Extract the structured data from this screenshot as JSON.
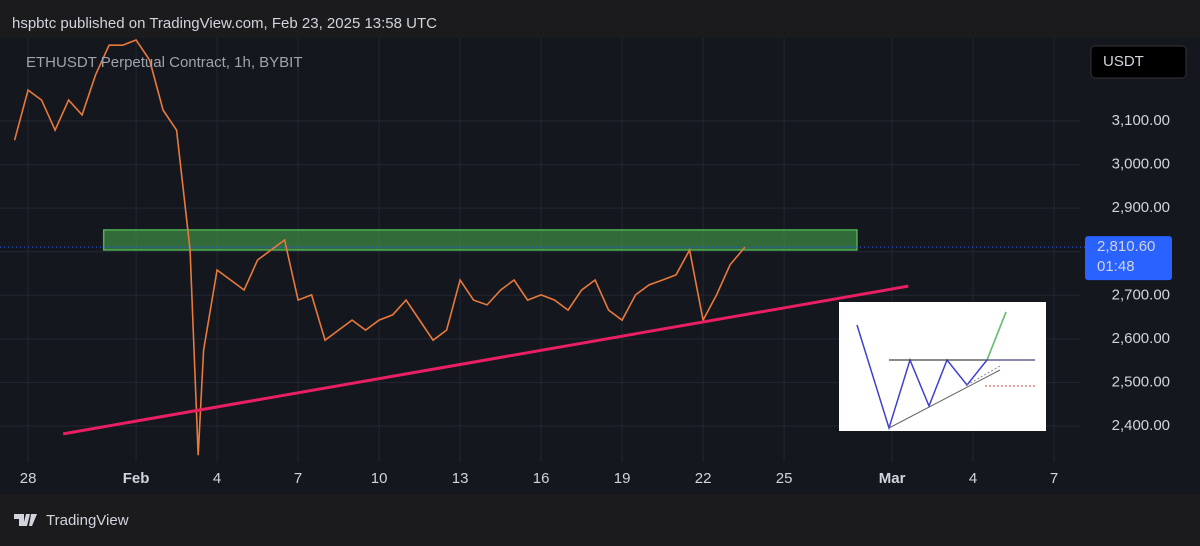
{
  "header": "hspbtc published on TradingView.com, Feb 23, 2025 13:58 UTC",
  "footer": "TradingView",
  "chart_data": {
    "type": "line",
    "title": "ETHUSDT Perpetual Contract, 1h, BYBIT",
    "currency": "USDT",
    "color": "#e8793a",
    "x": [
      -0.5,
      0,
      0.5,
      1,
      1.5,
      2,
      2.5,
      3,
      3.5,
      4,
      4.5,
      5,
      5.5,
      6,
      6.3,
      6.5,
      7,
      7.5,
      8,
      8.5,
      9,
      9.5,
      10,
      10.5,
      11,
      11.5,
      12,
      12.5,
      13,
      13.5,
      14,
      14.5,
      15,
      15.5,
      16,
      16.5,
      17,
      17.5,
      18,
      18.5,
      19,
      19.5,
      20,
      20.5,
      21,
      21.5,
      22,
      22.5,
      23,
      23.5,
      24,
      24.5,
      25,
      25.5,
      26,
      26.55
    ],
    "values": [
      3056,
      3171,
      3148,
      3079,
      3148,
      3114,
      3206,
      3274,
      3274,
      3286,
      3240,
      3125,
      3079,
      2804,
      2333,
      2574,
      2758,
      2735,
      2712,
      2781,
      2804,
      2827,
      2689,
      2701,
      2597,
      2620,
      2643,
      2620,
      2643,
      2655,
      2689,
      2643,
      2597,
      2620,
      2735,
      2689,
      2678,
      2712,
      2735,
      2689,
      2701,
      2689,
      2666,
      2712,
      2735,
      2666,
      2643,
      2701,
      2724,
      2735,
      2747,
      2804,
      2643,
      2701,
      2770,
      2810.6
    ],
    "xlim": [
      -1.04,
      38.96
    ],
    "ylim": [
      2317.4,
      3290.5
    ],
    "xticks": [
      {
        "value": 0,
        "label": "28"
      },
      {
        "value": 4,
        "label": "Feb"
      },
      {
        "value": 7,
        "label": "4"
      },
      {
        "value": 10,
        "label": "7"
      },
      {
        "value": 13,
        "label": "10"
      },
      {
        "value": 16,
        "label": "13"
      },
      {
        "value": 19,
        "label": "16"
      },
      {
        "value": 22,
        "label": "19"
      },
      {
        "value": 25,
        "label": "22"
      },
      {
        "value": 28,
        "label": "25"
      },
      {
        "value": 32,
        "label": "Mar"
      },
      {
        "value": 35,
        "label": "4"
      },
      {
        "value": 38,
        "label": "7"
      }
    ],
    "yticks": [
      {
        "value": 2400,
        "label": "2,400.00"
      },
      {
        "value": 2500,
        "label": "2,500.00"
      },
      {
        "value": 2600,
        "label": "2,600.00"
      },
      {
        "value": 2700,
        "label": "2,700.00"
      },
      {
        "value": 2800,
        "label": "2,800.00"
      },
      {
        "value": 2900,
        "label": "2,900.00"
      },
      {
        "value": 3000,
        "label": "3,000.00"
      },
      {
        "value": 3100,
        "label": "3,100.00"
      }
    ],
    "grid": true,
    "last_price": {
      "value": 2810.6,
      "label": "2,810.60"
    },
    "countdown": "01:48",
    "zone": {
      "x": [
        2.8,
        30.7
      ],
      "y": [
        2804,
        2850
      ],
      "color": "#4caf50"
    },
    "trendline": {
      "x": [
        1.3,
        32.6
      ],
      "y": [
        2382,
        2721
      ],
      "color": "#e91e63"
    }
  }
}
